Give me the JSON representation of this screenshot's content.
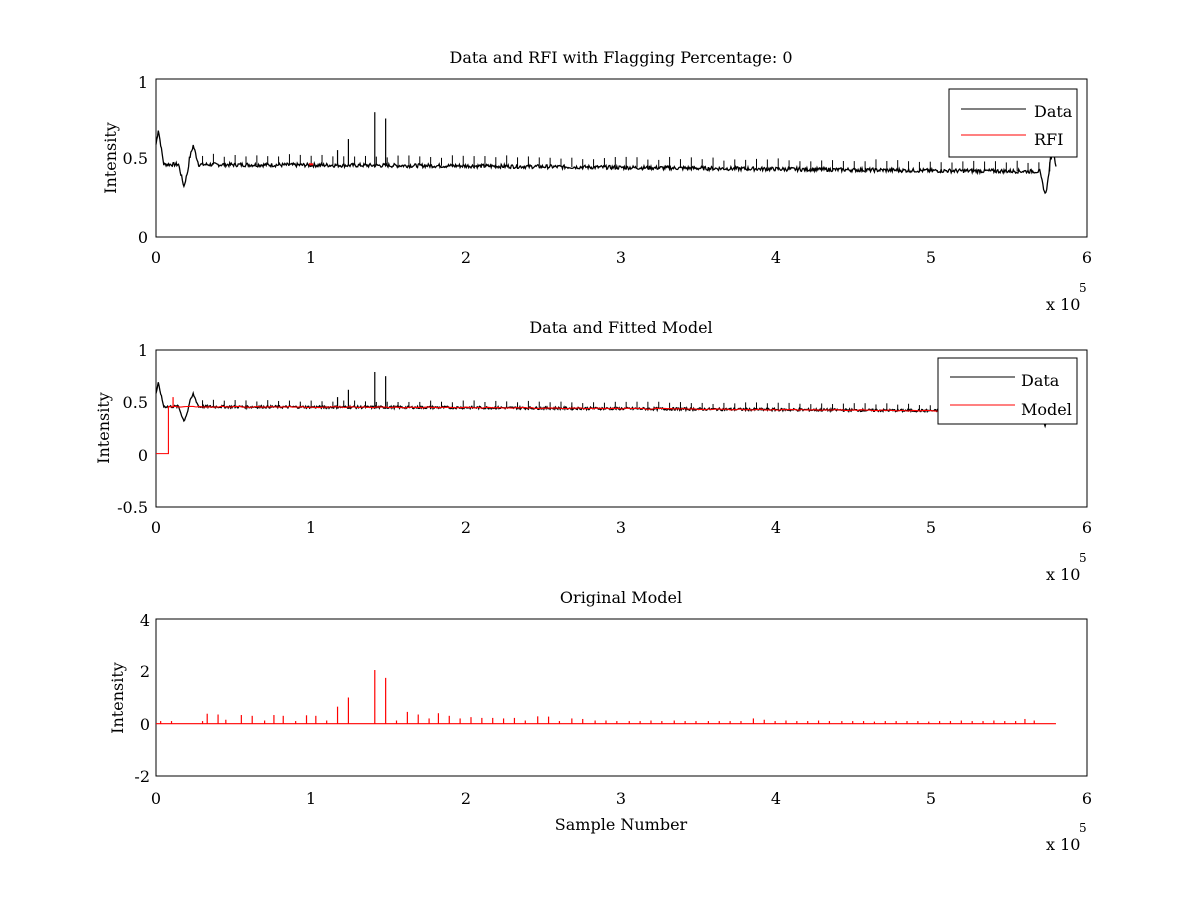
{
  "chart_data": [
    {
      "type": "line",
      "title": "Data and RFI with Flagging Percentage: 0",
      "xlabel": "",
      "ylabel": "Intensity",
      "xlim": [
        0,
        600000
      ],
      "ylim": [
        0,
        1
      ],
      "xticks": [
        "0",
        "1",
        "2",
        "3",
        "4",
        "5",
        "6"
      ],
      "yticks": [
        "0",
        "0.5",
        "1"
      ],
      "x_multiplier": {
        "base": "x 10",
        "exponent": "5"
      },
      "grid": false,
      "legend_position": "top-right",
      "legend": [
        "Data",
        "RFI"
      ],
      "colors": {
        "data": "#000000",
        "rfi": "#ff0000"
      },
      "series": [
        {
          "name": "Data",
          "color": "#000000",
          "baseline": [
            [
              0,
              0.46
            ],
            [
              100000,
              0.455
            ],
            [
              200000,
              0.45
            ],
            [
              300000,
              0.44
            ],
            [
              400000,
              0.43
            ],
            [
              500000,
              0.42
            ],
            [
              580000,
              0.415
            ]
          ],
          "features": [
            {
              "x": 1500,
              "y": 0.68
            },
            {
              "x": 18000,
              "y": 0.32
            },
            {
              "x": 24000,
              "y": 0.58
            },
            {
              "x": 573000,
              "y": 0.27
            },
            {
              "x": 578000,
              "y": 0.55
            },
            {
              "x": 580000,
              "y": 0.4
            }
          ],
          "spikes": [
            {
              "x": 117000,
              "y": 0.55
            },
            {
              "x": 124000,
              "y": 0.62
            },
            {
              "x": 141000,
              "y": 0.79
            },
            {
              "x": 148000,
              "y": 0.75
            }
          ]
        },
        {
          "name": "RFI",
          "color": "#ff0000",
          "points": [
            [
              100000,
              0.46
            ]
          ]
        }
      ]
    },
    {
      "type": "line",
      "title": "Data and Fitted Model",
      "xlabel": "",
      "ylabel": "Intensity",
      "xlim": [
        0,
        600000
      ],
      "ylim": [
        -0.5,
        1
      ],
      "xticks": [
        "0",
        "1",
        "2",
        "3",
        "4",
        "5",
        "6"
      ],
      "yticks": [
        "-0.5",
        "0",
        "0.5",
        "1"
      ],
      "x_multiplier": {
        "base": "x 10",
        "exponent": "5"
      },
      "grid": false,
      "legend_position": "top-right",
      "legend": [
        "Data",
        "Model"
      ],
      "series": [
        {
          "name": "Data",
          "color": "#000000",
          "baseline": [
            [
              0,
              0.46
            ],
            [
              100000,
              0.455
            ],
            [
              200000,
              0.45
            ],
            [
              300000,
              0.44
            ],
            [
              400000,
              0.43
            ],
            [
              500000,
              0.42
            ],
            [
              580000,
              0.415
            ]
          ],
          "features": [
            {
              "x": 1500,
              "y": 0.68
            },
            {
              "x": 18000,
              "y": 0.32
            },
            {
              "x": 24000,
              "y": 0.58
            },
            {
              "x": 573000,
              "y": 0.27
            },
            {
              "x": 578000,
              "y": 0.55
            }
          ],
          "spikes": [
            {
              "x": 117000,
              "y": 0.55
            },
            {
              "x": 124000,
              "y": 0.62
            },
            {
              "x": 141000,
              "y": 0.79
            },
            {
              "x": 148000,
              "y": 0.75
            }
          ]
        },
        {
          "name": "Model",
          "color": "#ff0000",
          "zero_segment": [
            [
              0,
              0.01
            ],
            [
              8000,
              0.01
            ]
          ],
          "step_up": {
            "x": 8000,
            "from": 0.01,
            "to": 0.46
          },
          "spike_near_start": {
            "x": 11000,
            "y": 0.55
          }
        }
      ]
    },
    {
      "type": "line",
      "title": "Original Model",
      "xlabel": "Sample Number",
      "ylabel": "Intensity",
      "xlim": [
        0,
        600000
      ],
      "ylim": [
        -2,
        4
      ],
      "xticks": [
        "0",
        "1",
        "2",
        "3",
        "4",
        "5",
        "6"
      ],
      "yticks": [
        "-2",
        "0",
        "2",
        "4"
      ],
      "x_multiplier": {
        "base": "x 10",
        "exponent": "5"
      },
      "grid": false,
      "series": [
        {
          "color": "#ff0000",
          "baseline": 0,
          "x_end": 580000,
          "spikes": [
            {
              "x": 3000,
              "y": 0.1
            },
            {
              "x": 10000,
              "y": 0.1
            },
            {
              "x": 30000,
              "y": 0.1
            },
            {
              "x": 33000,
              "y": 0.38
            },
            {
              "x": 40000,
              "y": 0.35
            },
            {
              "x": 45000,
              "y": 0.15
            },
            {
              "x": 55000,
              "y": 0.33
            },
            {
              "x": 62000,
              "y": 0.3
            },
            {
              "x": 70000,
              "y": 0.12
            },
            {
              "x": 76000,
              "y": 0.33
            },
            {
              "x": 82000,
              "y": 0.3
            },
            {
              "x": 90000,
              "y": 0.1
            },
            {
              "x": 97000,
              "y": 0.32
            },
            {
              "x": 103000,
              "y": 0.3
            },
            {
              "x": 110000,
              "y": 0.12
            },
            {
              "x": 117000,
              "y": 0.65
            },
            {
              "x": 124000,
              "y": 1.0
            },
            {
              "x": 141000,
              "y": 2.05
            },
            {
              "x": 148000,
              "y": 1.75
            },
            {
              "x": 155000,
              "y": 0.12
            },
            {
              "x": 162000,
              "y": 0.45
            },
            {
              "x": 169000,
              "y": 0.35
            },
            {
              "x": 176000,
              "y": 0.2
            },
            {
              "x": 182000,
              "y": 0.4
            },
            {
              "x": 189000,
              "y": 0.3
            },
            {
              "x": 196000,
              "y": 0.2
            },
            {
              "x": 203000,
              "y": 0.25
            },
            {
              "x": 210000,
              "y": 0.22
            },
            {
              "x": 217000,
              "y": 0.22
            },
            {
              "x": 224000,
              "y": 0.2
            },
            {
              "x": 231000,
              "y": 0.22
            },
            {
              "x": 238000,
              "y": 0.12
            },
            {
              "x": 246000,
              "y": 0.28
            },
            {
              "x": 253000,
              "y": 0.27
            },
            {
              "x": 260000,
              "y": 0.1
            },
            {
              "x": 268000,
              "y": 0.2
            },
            {
              "x": 275000,
              "y": 0.18
            },
            {
              "x": 283000,
              "y": 0.12
            },
            {
              "x": 290000,
              "y": 0.12
            },
            {
              "x": 297000,
              "y": 0.1
            },
            {
              "x": 305000,
              "y": 0.1
            },
            {
              "x": 312000,
              "y": 0.1
            },
            {
              "x": 319000,
              "y": 0.12
            },
            {
              "x": 326000,
              "y": 0.1
            },
            {
              "x": 334000,
              "y": 0.12
            },
            {
              "x": 341000,
              "y": 0.1
            },
            {
              "x": 348000,
              "y": 0.1
            },
            {
              "x": 356000,
              "y": 0.1
            },
            {
              "x": 363000,
              "y": 0.1
            },
            {
              "x": 370000,
              "y": 0.1
            },
            {
              "x": 377000,
              "y": 0.1
            },
            {
              "x": 385000,
              "y": 0.2
            },
            {
              "x": 392000,
              "y": 0.15
            },
            {
              "x": 399000,
              "y": 0.1
            },
            {
              "x": 406000,
              "y": 0.12
            },
            {
              "x": 413000,
              "y": 0.1
            },
            {
              "x": 420000,
              "y": 0.1
            },
            {
              "x": 427000,
              "y": 0.12
            },
            {
              "x": 434000,
              "y": 0.1
            },
            {
              "x": 442000,
              "y": 0.1
            },
            {
              "x": 449000,
              "y": 0.1
            },
            {
              "x": 456000,
              "y": 0.1
            },
            {
              "x": 463000,
              "y": 0.08
            },
            {
              "x": 470000,
              "y": 0.1
            },
            {
              "x": 477000,
              "y": 0.1
            },
            {
              "x": 484000,
              "y": 0.1
            },
            {
              "x": 491000,
              "y": 0.1
            },
            {
              "x": 498000,
              "y": 0.08
            },
            {
              "x": 505000,
              "y": 0.1
            },
            {
              "x": 512000,
              "y": 0.1
            },
            {
              "x": 519000,
              "y": 0.12
            },
            {
              "x": 526000,
              "y": 0.1
            },
            {
              "x": 533000,
              "y": 0.1
            },
            {
              "x": 540000,
              "y": 0.12
            },
            {
              "x": 547000,
              "y": 0.1
            },
            {
              "x": 554000,
              "y": 0.1
            },
            {
              "x": 560000,
              "y": 0.18
            },
            {
              "x": 566000,
              "y": 0.12
            }
          ]
        }
      ]
    }
  ]
}
